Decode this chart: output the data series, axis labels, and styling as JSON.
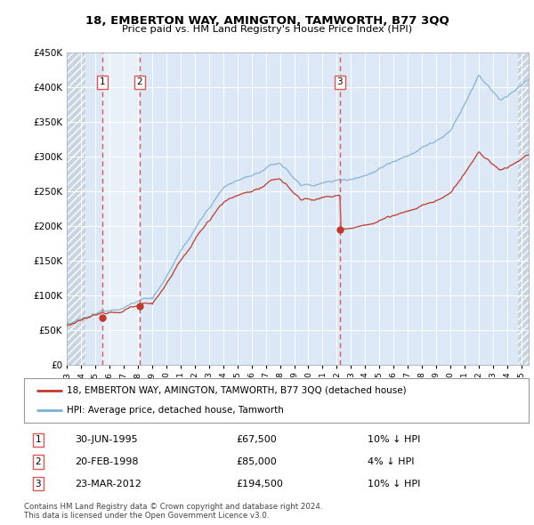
{
  "title": "18, EMBERTON WAY, AMINGTON, TAMWORTH, B77 3QQ",
  "subtitle": "Price paid vs. HM Land Registry's House Price Index (HPI)",
  "legend_property": "18, EMBERTON WAY, AMINGTON, TAMWORTH, B77 3QQ (detached house)",
  "legend_hpi": "HPI: Average price, detached house, Tamworth",
  "transactions": [
    {
      "num": 1,
      "date_str": "30-JUN-1995",
      "year": 1995.5,
      "price": 67500,
      "pct": "10% ↓ HPI"
    },
    {
      "num": 2,
      "date_str": "20-FEB-1998",
      "year": 1998.12,
      "price": 85000,
      "pct": "4% ↓ HPI"
    },
    {
      "num": 3,
      "date_str": "23-MAR-2012",
      "year": 2012.22,
      "price": 194500,
      "pct": "10% ↓ HPI"
    }
  ],
  "footnote1": "Contains HM Land Registry data © Crown copyright and database right 2024.",
  "footnote2": "This data is licensed under the Open Government Licence v3.0.",
  "hpi_color": "#7bafd4",
  "price_color": "#c0392b",
  "vline_color": "#e05555",
  "bg_plot": "#dce8f5",
  "bg_highlight": "#e8f0fa",
  "bg_hatch_color": "#c8d4e0",
  "ylim": [
    0,
    450000
  ],
  "xlim_left": 1993.0,
  "xlim_right": 2025.5,
  "yticks": [
    0,
    50000,
    100000,
    150000,
    200000,
    250000,
    300000,
    350000,
    400000,
    450000
  ],
  "xticks": [
    1993,
    1994,
    1995,
    1996,
    1997,
    1998,
    1999,
    2000,
    2001,
    2002,
    2003,
    2004,
    2005,
    2006,
    2007,
    2008,
    2009,
    2010,
    2011,
    2012,
    2013,
    2014,
    2015,
    2016,
    2017,
    2018,
    2019,
    2020,
    2021,
    2022,
    2023,
    2024,
    2025
  ],
  "hatch_left_end": 1994.3,
  "hatch_right_start": 2024.75,
  "highlight_start": 1995.5,
  "highlight_end": 1998.12
}
